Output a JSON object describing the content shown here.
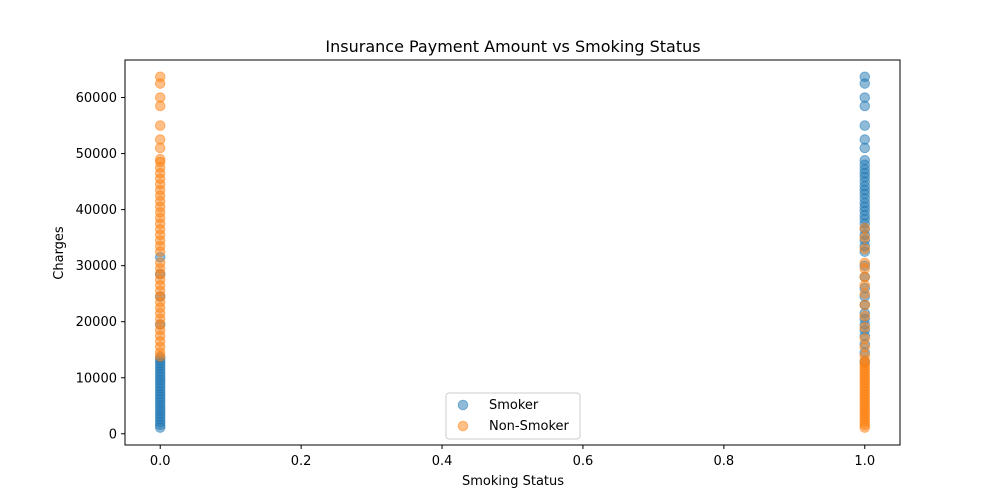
{
  "chart_data": {
    "type": "scatter",
    "title": "Insurance Payment Amount vs Smoking Status",
    "xlabel": "Smoking Status",
    "ylabel": "Charges",
    "xlim": [
      -0.05,
      1.05
    ],
    "ylim": [
      -2000,
      66700
    ],
    "x_ticks": [
      0.0,
      0.2,
      0.4,
      0.6,
      0.8,
      1.0
    ],
    "x_tick_labels": [
      "0.0",
      "0.2",
      "0.4",
      "0.6",
      "0.8",
      "1.0"
    ],
    "y_ticks": [
      0,
      10000,
      20000,
      30000,
      40000,
      50000,
      60000
    ],
    "y_tick_labels": [
      "0",
      "10000",
      "20000",
      "30000",
      "40000",
      "50000",
      "60000"
    ],
    "grid": false,
    "legend_position": "lower-center",
    "series": [
      {
        "name": "Smoker",
        "color": "#1f77b4",
        "alpha": 0.5,
        "points": [
          {
            "x": 0,
            "y": 1100
          },
          {
            "x": 0,
            "y": 1600
          },
          {
            "x": 0,
            "y": 2100
          },
          {
            "x": 0,
            "y": 2600
          },
          {
            "x": 0,
            "y": 3100
          },
          {
            "x": 0,
            "y": 3600
          },
          {
            "x": 0,
            "y": 4100
          },
          {
            "x": 0,
            "y": 4600
          },
          {
            "x": 0,
            "y": 5100
          },
          {
            "x": 0,
            "y": 5600
          },
          {
            "x": 0,
            "y": 6100
          },
          {
            "x": 0,
            "y": 6600
          },
          {
            "x": 0,
            "y": 7100
          },
          {
            "x": 0,
            "y": 7600
          },
          {
            "x": 0,
            "y": 8100
          },
          {
            "x": 0,
            "y": 8600
          },
          {
            "x": 0,
            "y": 9100
          },
          {
            "x": 0,
            "y": 9600
          },
          {
            "x": 0,
            "y": 10100
          },
          {
            "x": 0,
            "y": 10600
          },
          {
            "x": 0,
            "y": 11100
          },
          {
            "x": 0,
            "y": 11600
          },
          {
            "x": 0,
            "y": 12100
          },
          {
            "x": 0,
            "y": 12600
          },
          {
            "x": 0,
            "y": 13100
          },
          {
            "x": 0,
            "y": 13600
          },
          {
            "x": 0,
            "y": 19500
          },
          {
            "x": 0,
            "y": 24500
          },
          {
            "x": 0,
            "y": 28500
          },
          {
            "x": 0,
            "y": 31500
          },
          {
            "x": 1,
            "y": 12800
          },
          {
            "x": 1,
            "y": 14500
          },
          {
            "x": 1,
            "y": 16000
          },
          {
            "x": 1,
            "y": 17500
          },
          {
            "x": 1,
            "y": 18500
          },
          {
            "x": 1,
            "y": 19500
          },
          {
            "x": 1,
            "y": 20500
          },
          {
            "x": 1,
            "y": 21500
          },
          {
            "x": 1,
            "y": 23000
          },
          {
            "x": 1,
            "y": 24500
          },
          {
            "x": 1,
            "y": 26000
          },
          {
            "x": 1,
            "y": 28000
          },
          {
            "x": 1,
            "y": 30000
          },
          {
            "x": 1,
            "y": 32500
          },
          {
            "x": 1,
            "y": 33500
          },
          {
            "x": 1,
            "y": 34500
          },
          {
            "x": 1,
            "y": 35500
          },
          {
            "x": 1,
            "y": 36500
          },
          {
            "x": 1,
            "y": 37500
          },
          {
            "x": 1,
            "y": 38300
          },
          {
            "x": 1,
            "y": 39000
          },
          {
            "x": 1,
            "y": 39800
          },
          {
            "x": 1,
            "y": 40500
          },
          {
            "x": 1,
            "y": 41200
          },
          {
            "x": 1,
            "y": 42000
          },
          {
            "x": 1,
            "y": 42800
          },
          {
            "x": 1,
            "y": 43500
          },
          {
            "x": 1,
            "y": 44200
          },
          {
            "x": 1,
            "y": 45000
          },
          {
            "x": 1,
            "y": 45800
          },
          {
            "x": 1,
            "y": 46500
          },
          {
            "x": 1,
            "y": 47200
          },
          {
            "x": 1,
            "y": 48000
          },
          {
            "x": 1,
            "y": 48800
          },
          {
            "x": 1,
            "y": 51000
          },
          {
            "x": 1,
            "y": 52500
          },
          {
            "x": 1,
            "y": 55000
          },
          {
            "x": 1,
            "y": 58500
          },
          {
            "x": 1,
            "y": 60000
          },
          {
            "x": 1,
            "y": 62500
          },
          {
            "x": 1,
            "y": 63700
          }
        ]
      },
      {
        "name": "Non-Smoker",
        "color": "#ff7f0e",
        "alpha": 0.5,
        "points": [
          {
            "x": 0,
            "y": 13800
          },
          {
            "x": 0,
            "y": 14500
          },
          {
            "x": 0,
            "y": 15500
          },
          {
            "x": 0,
            "y": 16500
          },
          {
            "x": 0,
            "y": 17500
          },
          {
            "x": 0,
            "y": 18500
          },
          {
            "x": 0,
            "y": 19500
          },
          {
            "x": 0,
            "y": 20500
          },
          {
            "x": 0,
            "y": 21500
          },
          {
            "x": 0,
            "y": 22500
          },
          {
            "x": 0,
            "y": 23500
          },
          {
            "x": 0,
            "y": 24500
          },
          {
            "x": 0,
            "y": 25500
          },
          {
            "x": 0,
            "y": 26500
          },
          {
            "x": 0,
            "y": 27500
          },
          {
            "x": 0,
            "y": 28500
          },
          {
            "x": 0,
            "y": 29500
          },
          {
            "x": 0,
            "y": 30500
          },
          {
            "x": 0,
            "y": 32500
          },
          {
            "x": 0,
            "y": 33500
          },
          {
            "x": 0,
            "y": 34500
          },
          {
            "x": 0,
            "y": 35500
          },
          {
            "x": 0,
            "y": 36500
          },
          {
            "x": 0,
            "y": 37500
          },
          {
            "x": 0,
            "y": 38500
          },
          {
            "x": 0,
            "y": 39500
          },
          {
            "x": 0,
            "y": 40500
          },
          {
            "x": 0,
            "y": 41500
          },
          {
            "x": 0,
            "y": 42500
          },
          {
            "x": 0,
            "y": 43500
          },
          {
            "x": 0,
            "y": 44500
          },
          {
            "x": 0,
            "y": 45500
          },
          {
            "x": 0,
            "y": 46500
          },
          {
            "x": 0,
            "y": 47500
          },
          {
            "x": 0,
            "y": 48500
          },
          {
            "x": 0,
            "y": 49000
          },
          {
            "x": 0,
            "y": 51000
          },
          {
            "x": 0,
            "y": 52500
          },
          {
            "x": 0,
            "y": 55000
          },
          {
            "x": 0,
            "y": 58500
          },
          {
            "x": 0,
            "y": 60000
          },
          {
            "x": 0,
            "y": 62500
          },
          {
            "x": 0,
            "y": 63700
          },
          {
            "x": 1,
            "y": 1100
          },
          {
            "x": 1,
            "y": 1600
          },
          {
            "x": 1,
            "y": 2100
          },
          {
            "x": 1,
            "y": 2600
          },
          {
            "x": 1,
            "y": 3100
          },
          {
            "x": 1,
            "y": 3600
          },
          {
            "x": 1,
            "y": 4100
          },
          {
            "x": 1,
            "y": 4600
          },
          {
            "x": 1,
            "y": 5100
          },
          {
            "x": 1,
            "y": 5600
          },
          {
            "x": 1,
            "y": 6100
          },
          {
            "x": 1,
            "y": 6600
          },
          {
            "x": 1,
            "y": 7100
          },
          {
            "x": 1,
            "y": 7600
          },
          {
            "x": 1,
            "y": 8100
          },
          {
            "x": 1,
            "y": 8600
          },
          {
            "x": 1,
            "y": 9100
          },
          {
            "x": 1,
            "y": 9600
          },
          {
            "x": 1,
            "y": 10100
          },
          {
            "x": 1,
            "y": 10600
          },
          {
            "x": 1,
            "y": 11100
          },
          {
            "x": 1,
            "y": 11600
          },
          {
            "x": 1,
            "y": 12100
          },
          {
            "x": 1,
            "y": 12600
          },
          {
            "x": 1,
            "y": 13100
          },
          {
            "x": 1,
            "y": 14000
          },
          {
            "x": 1,
            "y": 15500
          },
          {
            "x": 1,
            "y": 17000
          },
          {
            "x": 1,
            "y": 19000
          },
          {
            "x": 1,
            "y": 21000
          },
          {
            "x": 1,
            "y": 23000
          },
          {
            "x": 1,
            "y": 25000
          },
          {
            "x": 1,
            "y": 26500
          },
          {
            "x": 1,
            "y": 28000
          },
          {
            "x": 1,
            "y": 29500
          },
          {
            "x": 1,
            "y": 30500
          },
          {
            "x": 1,
            "y": 33000
          },
          {
            "x": 1,
            "y": 35000
          },
          {
            "x": 1,
            "y": 36700
          }
        ]
      }
    ]
  }
}
